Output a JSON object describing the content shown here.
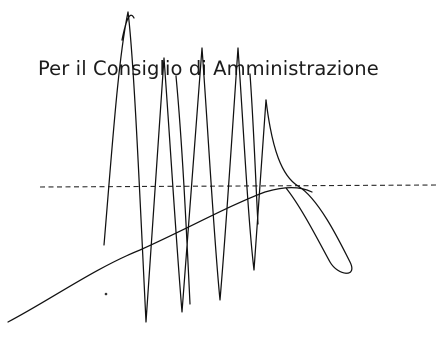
{
  "document": {
    "caption": "Per il Consiglio di Amministrazione"
  },
  "colors": {
    "ink": "#1c1c1c",
    "background": "#ffffff"
  }
}
